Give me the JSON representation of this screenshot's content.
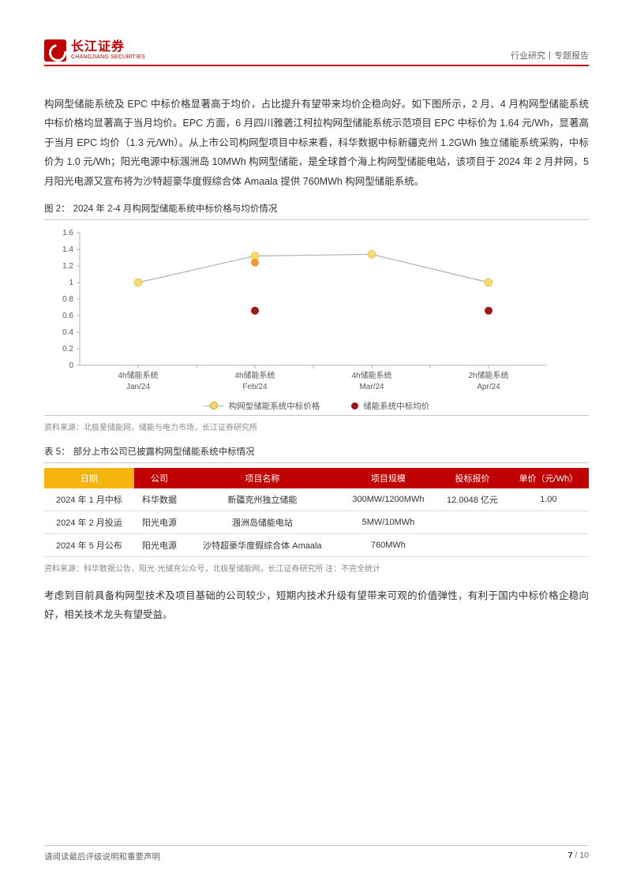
{
  "header": {
    "logo_cn": "长江证券",
    "logo_en": "CHANGJIANG SECURITIES",
    "right_text": "行业研究丨专题报告"
  },
  "paragraph1": "构网型储能系统及 EPC 中标价格显著高于均价，占比提升有望带来均价企稳向好。如下图所示，2 月、4 月构网型储能系统中标价格均显著高于当月均价。EPC 方面，6 月四川雅砻江柯拉构网型储能系统示范项目 EPC 中标价为 1.64 元/Wh，显著高于当月 EPC 均价（1.3 元/Wh）。从上市公司构网型项目中标来看，科华数据中标新疆克州 1.2GWh 独立储能系统采购，中标价为 1.0 元/Wh；阳光电源中标涠洲岛 10MWh 构网型储能，是全球首个海上构网型储能电站，该项目于 2024 年 2 月并网，5 月阳光电源又宣布将为沙特超豪华度假综合体 Amaala 提供 760MWh 构网型储能系统。",
  "figure2": {
    "caption_prefix": "图 2：",
    "caption": "2024 年 2-4 月构网型储能系统中标价格与均价情况",
    "type": "line-scatter",
    "y_ticks": [
      0,
      0.2,
      0.4,
      0.6,
      0.8,
      1,
      1.2,
      1.4,
      1.6
    ],
    "ylim": [
      0,
      1.6
    ],
    "x_categories": [
      {
        "top": "4h储能系统",
        "bottom": "Jan/24"
      },
      {
        "top": "4h储能系统",
        "bottom": "Feb/24"
      },
      {
        "top": "4h储能系统",
        "bottom": "Mar/24"
      },
      {
        "top": "2h储能系统",
        "bottom": "Apr/24"
      }
    ],
    "series_line": {
      "name": "构网型储能系统中标价格",
      "color_line": "#b0b0b0",
      "color_marker": "#ffd966",
      "marker_border": "#bfa030",
      "values": [
        1.0,
        1.32,
        1.34,
        1.0
      ]
    },
    "series_points": {
      "name": "储能系统中标均价",
      "color": "#a01818",
      "values": [
        null,
        0.66,
        null,
        0.66
      ]
    },
    "extra_orange": {
      "color": "#ed9b2d",
      "values": [
        null,
        1.24,
        null,
        null
      ]
    },
    "legend": [
      "构网型储能系统中标价格",
      "储能系统中标均价"
    ],
    "source": "资料来源：北极星储能网，储能与电力市场，长江证券研究所"
  },
  "table5": {
    "caption_prefix": "表 5：",
    "caption": "部分上市公司已披露构网型储能系统中标情况",
    "header_bg_first": "#f6b40e",
    "header_bg_rest": "#c00000",
    "columns": [
      "日期",
      "公司",
      "项目名称",
      "项目规模",
      "投标报价",
      "单价（元/Wh）"
    ],
    "rows": [
      [
        "2024 年 1 月中标",
        "科华数据",
        "新疆克州独立储能",
        "300MW/1200MWh",
        "12.0048 亿元",
        "1.00"
      ],
      [
        "2024 年 2 月投运",
        "阳光电源",
        "涠洲岛储能电站",
        "5MW/10MWh",
        "",
        ""
      ],
      [
        "2024 年 5 月公布",
        "阳光电源",
        "沙特超豪华度假综合体 Amaala",
        "760MWh",
        "",
        ""
      ]
    ],
    "source": "资料来源：科华数据公告，阳光·光储充公众号，北极星储能网，长江证券研究所  注：不完全统计"
  },
  "paragraph2": "考虑到目前具备构网型技术及项目基础的公司较少，短期内技术升级有望带来可观的价值弹性，有利于国内中标价格企稳向好，相关技术龙头有望受益。",
  "footer": {
    "left": "请阅读最后评级说明和重要声明",
    "page_current": "7",
    "page_sep": " / ",
    "page_total": "10"
  }
}
